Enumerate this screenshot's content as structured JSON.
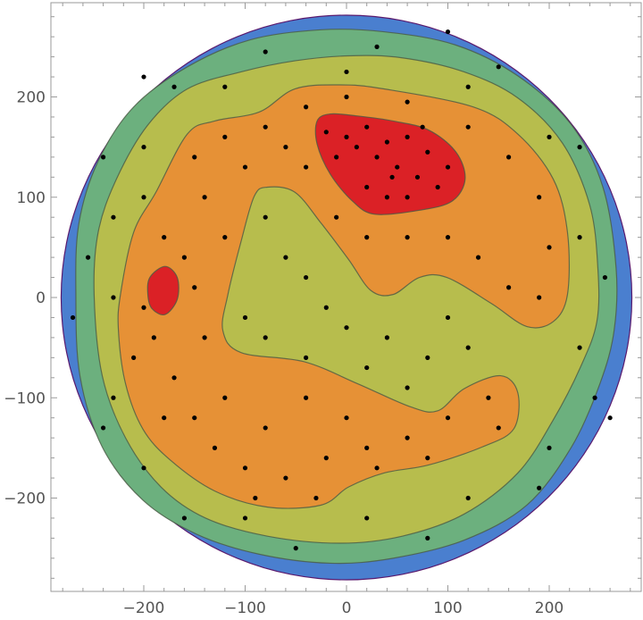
{
  "chart_data": {
    "type": "contour",
    "title": "",
    "xlabel": "",
    "ylabel": "",
    "xlim": [
      -290,
      290
    ],
    "ylim": [
      -292,
      295
    ],
    "grid": false,
    "x_ticks": [
      -200,
      -100,
      0,
      100,
      200
    ],
    "y_ticks": [
      -200,
      -100,
      0,
      100,
      200
    ],
    "x_tick_labels": [
      "−200",
      "−100",
      "0",
      "100",
      "200"
    ],
    "y_tick_labels": [
      "−200",
      "−100",
      "0",
      "100",
      "200"
    ],
    "minor_tick_step": 20,
    "disk_radius": 281,
    "colors": {
      "disk_edge": "#5a1a6e",
      "level1": "#4a7fcf",
      "level2": "#6cb07e",
      "level3": "#b7bd4d",
      "level4": "#e69136",
      "level5": "#db2126",
      "contour_line": "#4a5a45",
      "point": "#000000"
    },
    "regions": [
      {
        "level": "level2",
        "outline": [
          [
            -267,
            3
          ],
          [
            -264,
            74
          ],
          [
            -245,
            136
          ],
          [
            -210,
            190
          ],
          [
            -157,
            230
          ],
          [
            -95,
            257
          ],
          [
            -25,
            267
          ],
          [
            37,
            265
          ],
          [
            107,
            252
          ],
          [
            169,
            221
          ],
          [
            222,
            172
          ],
          [
            253,
            110
          ],
          [
            266,
            29
          ],
          [
            264,
            -33
          ],
          [
            250,
            -86
          ],
          [
            222,
            -149
          ],
          [
            178,
            -207
          ],
          [
            116,
            -242
          ],
          [
            46,
            -260
          ],
          [
            -16,
            -265
          ],
          [
            -86,
            -256
          ],
          [
            -148,
            -236
          ],
          [
            -201,
            -202
          ],
          [
            -241,
            -149
          ],
          [
            -263,
            -78
          ]
        ]
      },
      {
        "level": "level3",
        "outline": [
          [
            -249,
            3
          ],
          [
            -245,
            65
          ],
          [
            -227,
            118
          ],
          [
            -196,
            172
          ],
          [
            -157,
            208
          ],
          [
            -104,
            225
          ],
          [
            -51,
            236
          ],
          [
            2,
            241
          ],
          [
            55,
            239
          ],
          [
            116,
            225
          ],
          [
            169,
            199
          ],
          [
            213,
            154
          ],
          [
            240,
            92
          ],
          [
            248,
            29
          ],
          [
            247,
            -24
          ],
          [
            231,
            -69
          ],
          [
            204,
            -122
          ],
          [
            169,
            -175
          ],
          [
            116,
            -216
          ],
          [
            55,
            -238
          ],
          [
            -7,
            -245
          ],
          [
            -78,
            -238
          ],
          [
            -139,
            -220
          ],
          [
            -183,
            -189
          ],
          [
            -218,
            -140
          ],
          [
            -241,
            -78
          ]
        ]
      },
      {
        "level": "level4",
        "outline": [
          [
            -223,
            3
          ],
          [
            -210,
            65
          ],
          [
            -188,
            105
          ],
          [
            -157,
            163
          ],
          [
            -130,
            176
          ],
          [
            -86,
            185
          ],
          [
            -51,
            208
          ],
          [
            -7,
            212
          ],
          [
            37,
            208
          ],
          [
            125,
            190
          ],
          [
            169,
            163
          ],
          [
            204,
            118
          ],
          [
            218,
            65
          ],
          [
            218,
            3
          ],
          [
            204,
            -24
          ],
          [
            178,
            -29
          ],
          [
            143,
            -6
          ],
          [
            99,
            20
          ],
          [
            72,
            20
          ],
          [
            46,
            3
          ],
          [
            24,
            7
          ],
          [
            2,
            38
          ],
          [
            -25,
            74
          ],
          [
            -51,
            105
          ],
          [
            -78,
            110
          ],
          [
            -91,
            101
          ],
          [
            -104,
            56
          ],
          [
            -117,
            3
          ],
          [
            -122,
            -33
          ],
          [
            -104,
            -55
          ],
          [
            -42,
            -64
          ],
          [
            11,
            -86
          ],
          [
            63,
            -109
          ],
          [
            90,
            -113
          ],
          [
            116,
            -91
          ],
          [
            152,
            -78
          ],
          [
            169,
            -95
          ],
          [
            165,
            -131
          ],
          [
            134,
            -149
          ],
          [
            81,
            -167
          ],
          [
            37,
            -175
          ],
          [
            2,
            -189
          ],
          [
            -25,
            -207
          ],
          [
            -78,
            -209
          ],
          [
            -130,
            -193
          ],
          [
            -174,
            -162
          ],
          [
            -201,
            -131
          ],
          [
            -218,
            -86
          ],
          [
            -225,
            -33
          ]
        ]
      },
      {
        "level": "level5",
        "outline": [
          [
            -29,
            176
          ],
          [
            -16,
            183
          ],
          [
            11,
            181
          ],
          [
            46,
            176
          ],
          [
            81,
            167
          ],
          [
            108,
            145
          ],
          [
            117,
            118
          ],
          [
            104,
            96
          ],
          [
            72,
            87
          ],
          [
            28,
            83
          ],
          [
            6,
            96
          ],
          [
            -16,
            123
          ],
          [
            -29,
            153
          ]
        ]
      },
      {
        "level": "level5",
        "outline": [
          [
            -194,
            20
          ],
          [
            -179,
            31
          ],
          [
            -167,
            20
          ],
          [
            -167,
            -2
          ],
          [
            -179,
            -17
          ],
          [
            -192,
            -11
          ],
          [
            -196,
            3
          ]
        ]
      }
    ],
    "points": [
      [
        0,
        160
      ],
      [
        10,
        150
      ],
      [
        20,
        170
      ],
      [
        30,
        140
      ],
      [
        40,
        155
      ],
      [
        50,
        130
      ],
      [
        60,
        160
      ],
      [
        70,
        120
      ],
      [
        80,
        145
      ],
      [
        90,
        110
      ],
      [
        100,
        130
      ],
      [
        20,
        110
      ],
      [
        40,
        100
      ],
      [
        -10,
        140
      ],
      [
        60,
        100
      ],
      [
        -20,
        165
      ],
      [
        75,
        170
      ],
      [
        45,
        120
      ],
      [
        -200,
        100
      ],
      [
        -180,
        60
      ],
      [
        -190,
        -40
      ],
      [
        -170,
        -80
      ],
      [
        -150,
        -120
      ],
      [
        -130,
        -150
      ],
      [
        -100,
        -170
      ],
      [
        -60,
        -180
      ],
      [
        -20,
        -160
      ],
      [
        20,
        -150
      ],
      [
        60,
        -140
      ],
      [
        100,
        -120
      ],
      [
        140,
        -100
      ],
      [
        150,
        -130
      ],
      [
        -150,
        140
      ],
      [
        -120,
        160
      ],
      [
        -80,
        170
      ],
      [
        -40,
        190
      ],
      [
        0,
        200
      ],
      [
        60,
        195
      ],
      [
        120,
        170
      ],
      [
        160,
        140
      ],
      [
        190,
        100
      ],
      [
        200,
        50
      ],
      [
        190,
        0
      ],
      [
        160,
        10
      ],
      [
        130,
        40
      ],
      [
        100,
        60
      ],
      [
        60,
        60
      ],
      [
        20,
        60
      ],
      [
        -10,
        80
      ],
      [
        -40,
        130
      ],
      [
        -100,
        130
      ],
      [
        -140,
        100
      ],
      [
        -160,
        40
      ],
      [
        -200,
        -10
      ],
      [
        -210,
        -60
      ],
      [
        -180,
        -120
      ],
      [
        -120,
        -100
      ],
      [
        -80,
        -130
      ],
      [
        -40,
        -100
      ],
      [
        0,
        -120
      ],
      [
        -140,
        -40
      ],
      [
        -150,
        10
      ],
      [
        -120,
        60
      ],
      [
        -60,
        150
      ],
      [
        30,
        -170
      ],
      [
        80,
        -160
      ],
      [
        -30,
        -200
      ],
      [
        -90,
        -200
      ],
      [
        -80,
        80
      ],
      [
        -60,
        40
      ],
      [
        -40,
        20
      ],
      [
        -20,
        -10
      ],
      [
        0,
        -30
      ],
      [
        40,
        -40
      ],
      [
        80,
        -60
      ],
      [
        100,
        -20
      ],
      [
        120,
        -50
      ],
      [
        -100,
        -20
      ],
      [
        -80,
        -40
      ],
      [
        -40,
        -60
      ],
      [
        20,
        -70
      ],
      [
        60,
        -90
      ],
      [
        -230,
        0
      ],
      [
        -230,
        80
      ],
      [
        -200,
        150
      ],
      [
        -120,
        210
      ],
      [
        0,
        225
      ],
      [
        120,
        210
      ],
      [
        200,
        160
      ],
      [
        230,
        60
      ],
      [
        230,
        -50
      ],
      [
        200,
        -150
      ],
      [
        120,
        -200
      ],
      [
        20,
        -220
      ],
      [
        -100,
        -220
      ],
      [
        -200,
        -170
      ],
      [
        -230,
        -100
      ],
      [
        -255,
        40
      ],
      [
        -240,
        140
      ],
      [
        -170,
        210
      ],
      [
        -80,
        245
      ],
      [
        30,
        250
      ],
      [
        150,
        230
      ],
      [
        230,
        150
      ],
      [
        255,
        20
      ],
      [
        245,
        -100
      ],
      [
        190,
        -190
      ],
      [
        80,
        -240
      ],
      [
        -50,
        -250
      ],
      [
        -160,
        -220
      ],
      [
        -240,
        -130
      ],
      [
        -270,
        -20
      ],
      [
        -200,
        220
      ],
      [
        100,
        265
      ],
      [
        260,
        -120
      ]
    ]
  }
}
